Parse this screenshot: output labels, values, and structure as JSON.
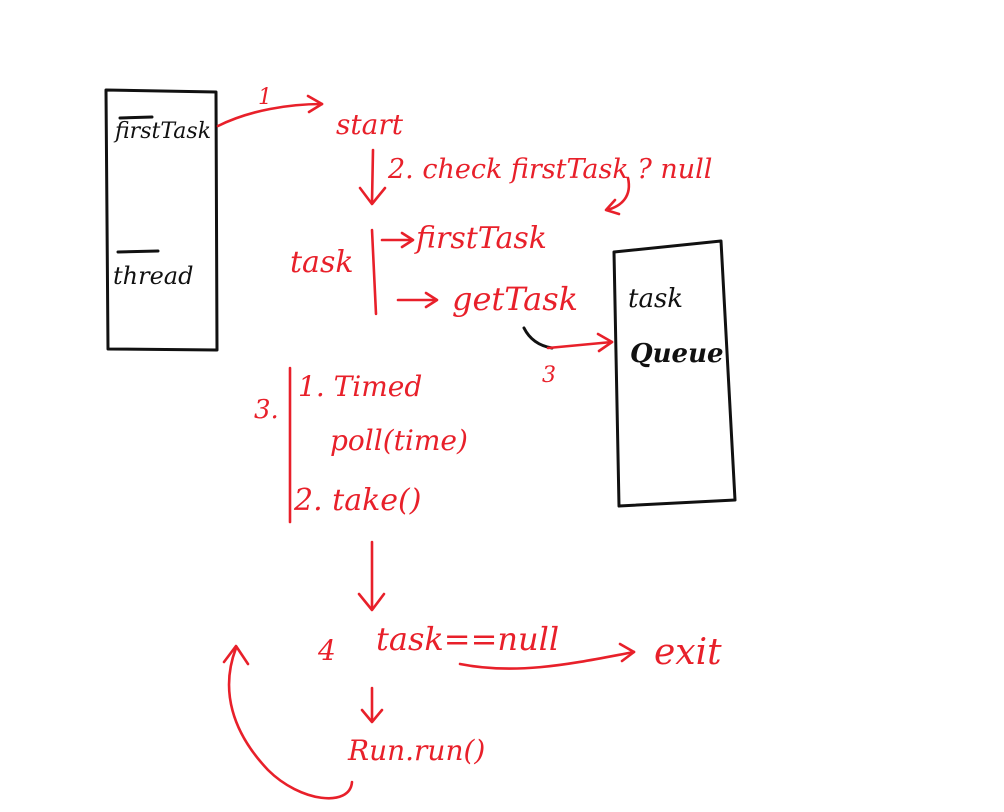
{
  "colors": {
    "ink": "#e8202a",
    "box": "#111111",
    "background": "#ffffff"
  },
  "worker_box": {
    "first_task_label": "firstTask",
    "thread_label": "thread"
  },
  "queue_box": {
    "line1": "task",
    "line2": "Queue"
  },
  "steps": {
    "step1_number": "1",
    "start_label": "start",
    "step2_label": "2. check firstTask ? null",
    "task_label": "task",
    "branch_first_task": "firstTask",
    "branch_get_task": "getTask",
    "step3_number": "3",
    "step3_prefix": "3.",
    "timed_label": "1. Timed",
    "poll_label": "poll(time)",
    "take_label": "2. take()",
    "step4_number": "4",
    "task_null_label": "task==null",
    "exit_label": "exit",
    "run_label": "Run.run()"
  }
}
